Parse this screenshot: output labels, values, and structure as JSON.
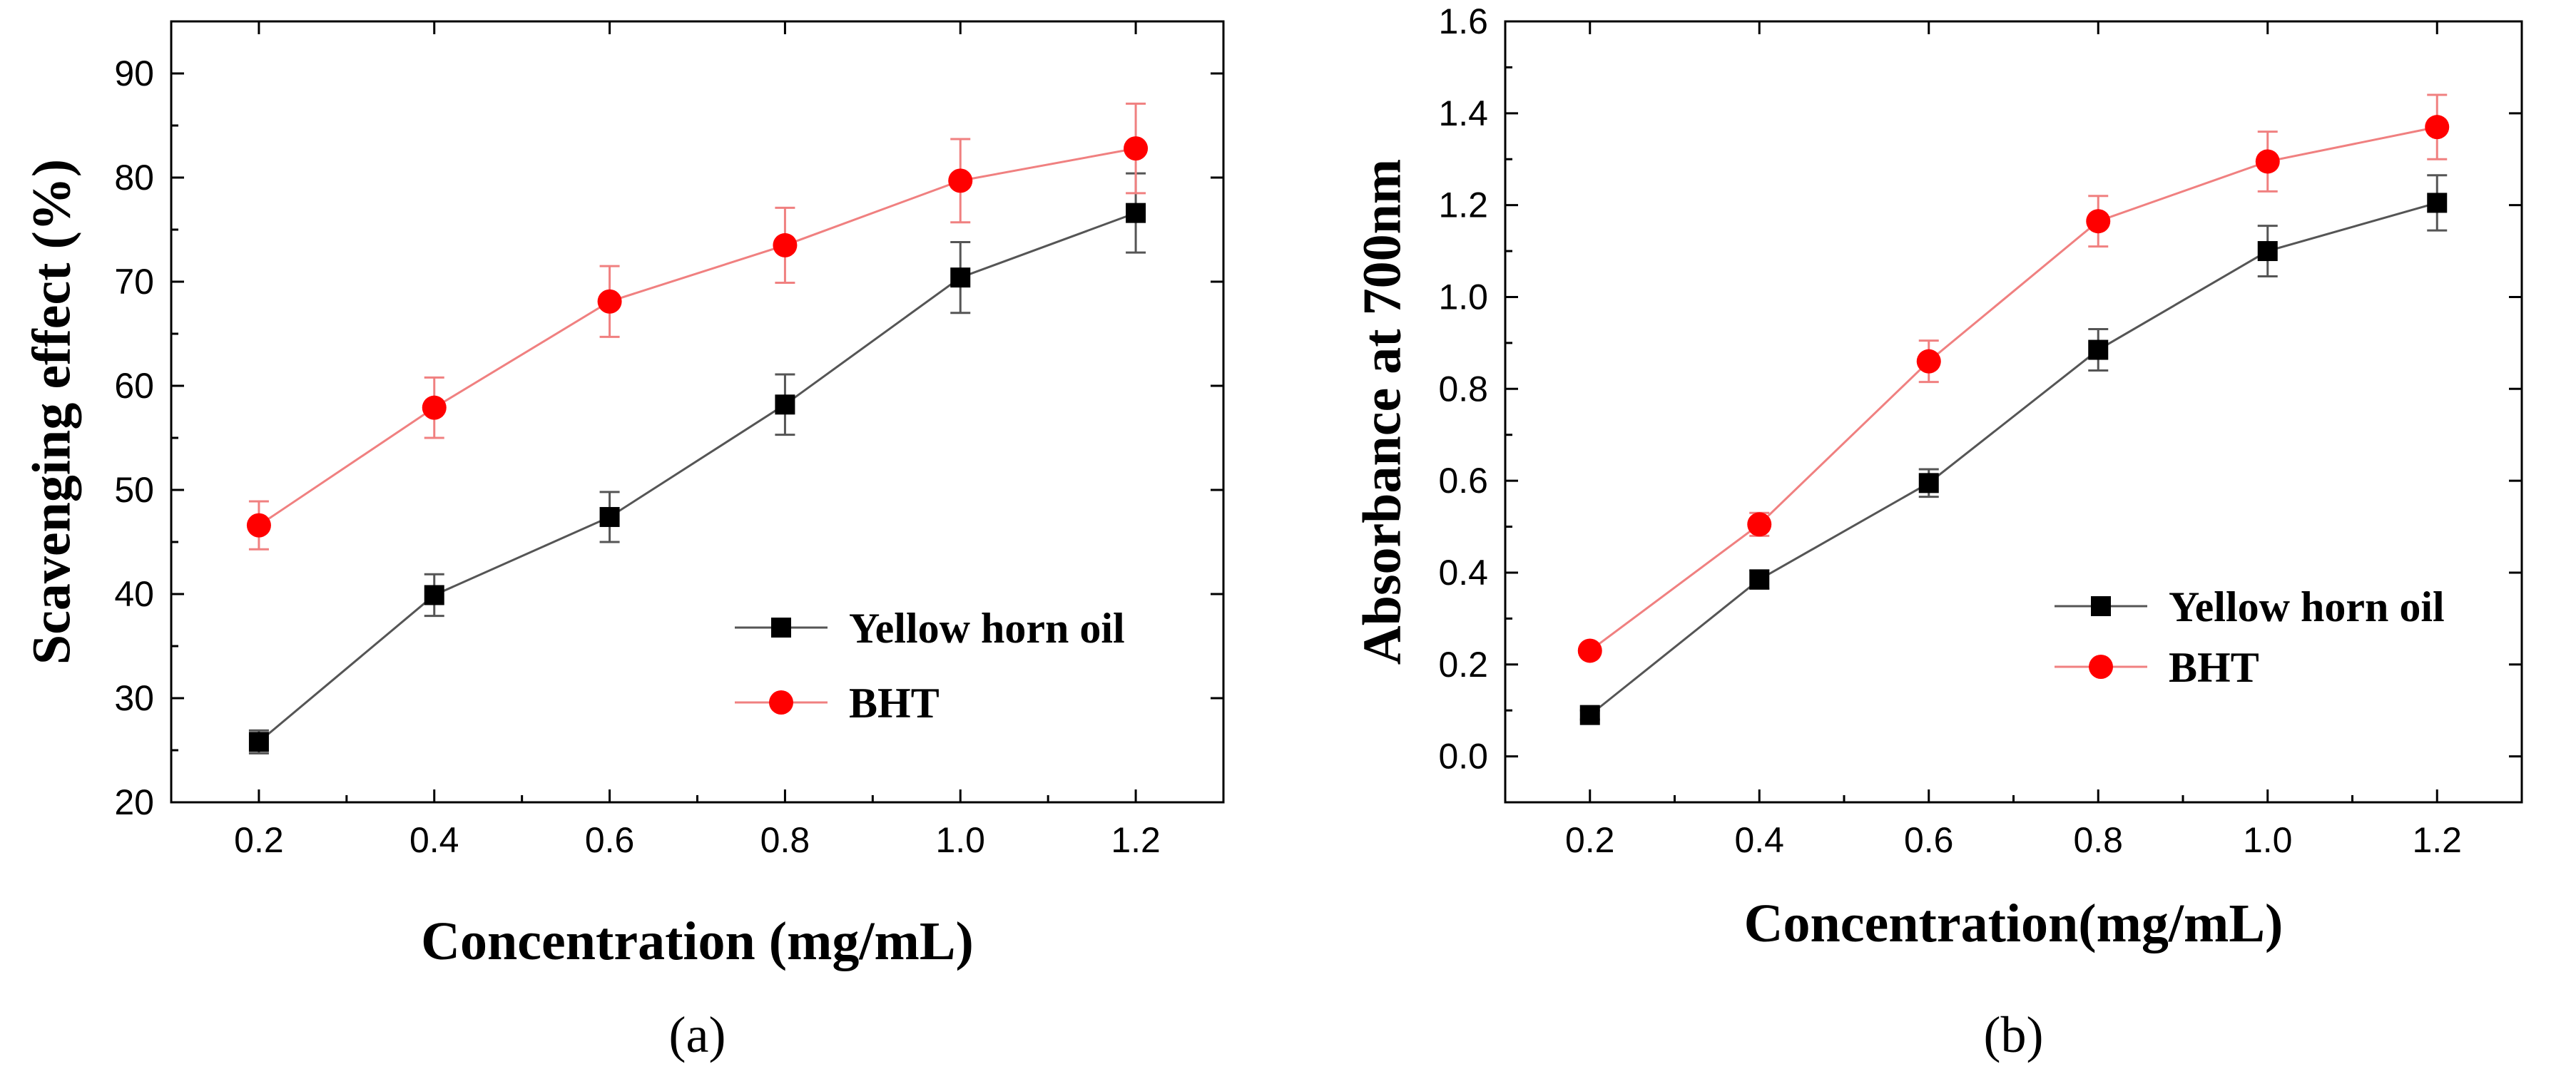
{
  "colors": {
    "series1": "#000000",
    "series2": "#ff0000",
    "line1": "#555555",
    "line2": "#f08080"
  },
  "chart_data": [
    {
      "type": "line",
      "panel_label": "(a)",
      "xlabel": "Concentration (mg/mL)",
      "ylabel": "Scavenging effect (%)",
      "xlim": [
        0.1,
        1.3
      ],
      "ylim": [
        20,
        95
      ],
      "x": [
        0.2,
        0.4,
        0.6,
        0.8,
        1.0,
        1.2
      ],
      "x_ticks": [
        "0.2",
        "0.4",
        "0.6",
        "0.8",
        "1.0",
        "1.2"
      ],
      "y_ticks": [
        "20",
        "30",
        "40",
        "50",
        "60",
        "70",
        "80",
        "90"
      ],
      "grid": false,
      "legend_position": "center-right",
      "series": [
        {
          "name": "Yellow horn oil",
          "marker": "square",
          "values": [
            25.8,
            39.9,
            47.4,
            58.2,
            70.4,
            76.6
          ],
          "errors": [
            1.1,
            2.0,
            2.4,
            2.9,
            3.4,
            3.8
          ]
        },
        {
          "name": "BHT",
          "marker": "circle",
          "values": [
            46.6,
            57.9,
            68.1,
            73.5,
            79.7,
            82.8
          ],
          "errors": [
            2.3,
            2.9,
            3.4,
            3.6,
            4.0,
            4.3
          ]
        }
      ]
    },
    {
      "type": "line",
      "panel_label": "(b)",
      "xlabel": "Concentration(mg/mL)",
      "ylabel": "Absorbance at 700nm",
      "xlim": [
        0.1,
        1.3
      ],
      "ylim": [
        -0.1,
        1.6
      ],
      "x": [
        0.2,
        0.4,
        0.6,
        0.8,
        1.0,
        1.2
      ],
      "x_ticks": [
        "0.2",
        "0.4",
        "0.6",
        "0.8",
        "1.0",
        "1.2"
      ],
      "y_ticks": [
        "0.0",
        "0.2",
        "0.4",
        "0.6",
        "0.8",
        "1.0",
        "1.2",
        "1.4",
        "1.6"
      ],
      "grid": false,
      "legend_position": "center-right",
      "series": [
        {
          "name": "Yellow horn oil",
          "marker": "square",
          "values": [
            0.09,
            0.385,
            0.595,
            0.885,
            1.1,
            1.205
          ],
          "errors": [
            0.01,
            0.02,
            0.03,
            0.045,
            0.055,
            0.06
          ]
        },
        {
          "name": "BHT",
          "marker": "circle",
          "values": [
            0.23,
            0.505,
            0.86,
            1.165,
            1.295,
            1.37
          ],
          "errors": [
            0.01,
            0.025,
            0.045,
            0.055,
            0.065,
            0.07
          ]
        }
      ]
    }
  ]
}
